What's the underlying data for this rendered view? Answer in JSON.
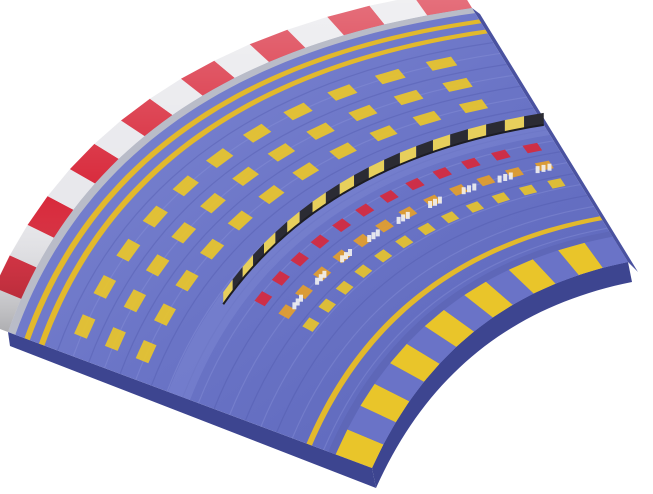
{
  "asset": {
    "kind": "curved race-track segment",
    "colors": {
      "surface": "#6f79c9",
      "surface_dark": "#4e57a8",
      "surface_light": "#8f98dc",
      "side": "#3d4590",
      "stripe_yellow": "#e9c52a",
      "stripe_orange": "#e7a028",
      "stripe_red": "#d8283a",
      "curb_red": "#d8283a",
      "curb_white": "#e8e8ec",
      "curb_gray": "#b9bcc8",
      "barrier_black": "#2b2b33",
      "barrier_yellow": "#e7cf5c",
      "edge_yellow": "#e2b92c",
      "edge_blue": "#6a73c7",
      "marker_white": "#f2f2f2"
    }
  }
}
